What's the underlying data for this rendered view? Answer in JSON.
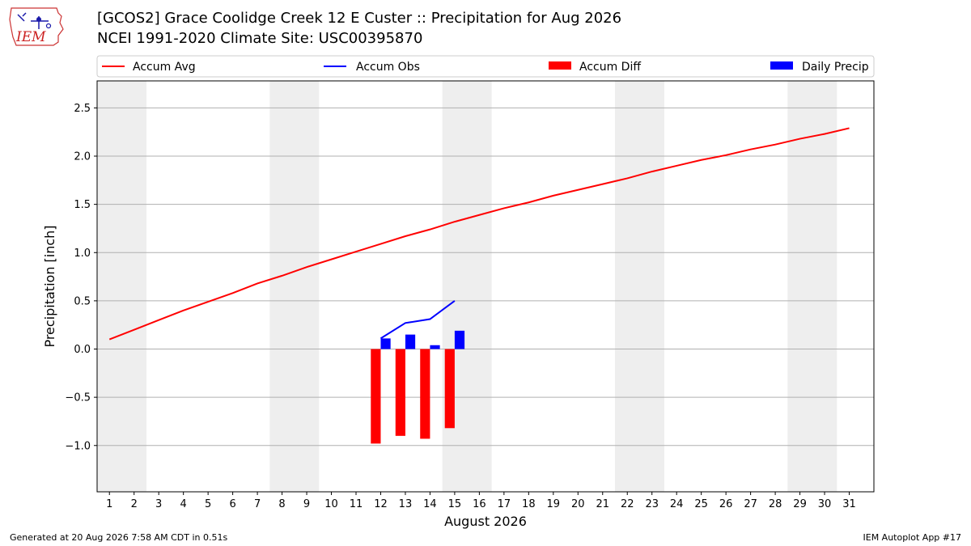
{
  "header": {
    "title_line1": "[GCOS2] Grace Coolidge Creek 12 E Custer :: Precipitation for Aug 2026",
    "title_line2": "NCEI 1991-2020 Climate Site: USC00395870",
    "logo_text": "IEM"
  },
  "footer": {
    "generated": "Generated at 20 Aug 2026 7:58 AM CDT in 0.51s",
    "app": "IEM Autoplot App #17"
  },
  "chart_data": {
    "type": "line",
    "xlabel": "August 2026",
    "ylabel": "Precipitation [inch]",
    "xlim": [
      0.5,
      32.0
    ],
    "ylim": [
      -1.48,
      2.78
    ],
    "x_ticks": [
      1,
      2,
      3,
      4,
      5,
      6,
      7,
      8,
      9,
      10,
      11,
      12,
      13,
      14,
      15,
      16,
      17,
      18,
      19,
      20,
      21,
      22,
      23,
      24,
      25,
      26,
      27,
      28,
      29,
      30,
      31
    ],
    "y_ticks": [
      -1.0,
      -0.5,
      0.0,
      0.5,
      1.0,
      1.5,
      2.0,
      2.5
    ],
    "y_tick_labels": [
      "−1.0",
      "−0.5",
      "0.0",
      "0.5",
      "1.0",
      "1.5",
      "2.0",
      "2.5"
    ],
    "weekend_bands": [
      [
        0.5,
        2.5
      ],
      [
        7.5,
        9.5
      ],
      [
        14.5,
        16.5
      ],
      [
        21.5,
        23.5
      ],
      [
        28.5,
        30.5
      ]
    ],
    "grid": "horizontal",
    "legend": {
      "placement": "top",
      "entries": [
        {
          "label": "Accum Avg",
          "kind": "line",
          "color": "#ff0000"
        },
        {
          "label": "Accum Obs",
          "kind": "line",
          "color": "#0000ff"
        },
        {
          "label": "Accum Diff",
          "kind": "bar",
          "color": "#ff0000"
        },
        {
          "label": "Daily Precip",
          "kind": "bar",
          "color": "#0000ff"
        }
      ]
    },
    "series": [
      {
        "name": "Accum Avg",
        "type": "line",
        "color": "#ff0000",
        "x": [
          1,
          2,
          3,
          4,
          5,
          6,
          7,
          8,
          9,
          10,
          11,
          12,
          13,
          14,
          15,
          16,
          17,
          18,
          19,
          20,
          21,
          22,
          23,
          24,
          25,
          26,
          27,
          28,
          29,
          30,
          31
        ],
        "values": [
          0.1,
          0.2,
          0.3,
          0.4,
          0.49,
          0.58,
          0.68,
          0.76,
          0.85,
          0.93,
          1.01,
          1.09,
          1.17,
          1.24,
          1.32,
          1.39,
          1.46,
          1.52,
          1.59,
          1.65,
          1.71,
          1.77,
          1.84,
          1.9,
          1.96,
          2.01,
          2.07,
          2.12,
          2.18,
          2.23,
          2.29
        ]
      },
      {
        "name": "Accum Obs",
        "type": "line",
        "color": "#0000ff",
        "x": [
          12,
          13,
          14,
          15
        ],
        "values": [
          0.11,
          0.27,
          0.31,
          0.5
        ]
      },
      {
        "name": "Accum Diff",
        "type": "bar",
        "color": "#ff0000",
        "offset": -0.2,
        "x": [
          12,
          13,
          14,
          15
        ],
        "values": [
          -0.98,
          -0.9,
          -0.93,
          -0.82
        ]
      },
      {
        "name": "Daily Precip",
        "type": "bar",
        "color": "#0000ff",
        "offset": 0.2,
        "x": [
          12,
          13,
          14,
          15
        ],
        "values": [
          0.11,
          0.15,
          0.04,
          0.19
        ]
      }
    ]
  }
}
